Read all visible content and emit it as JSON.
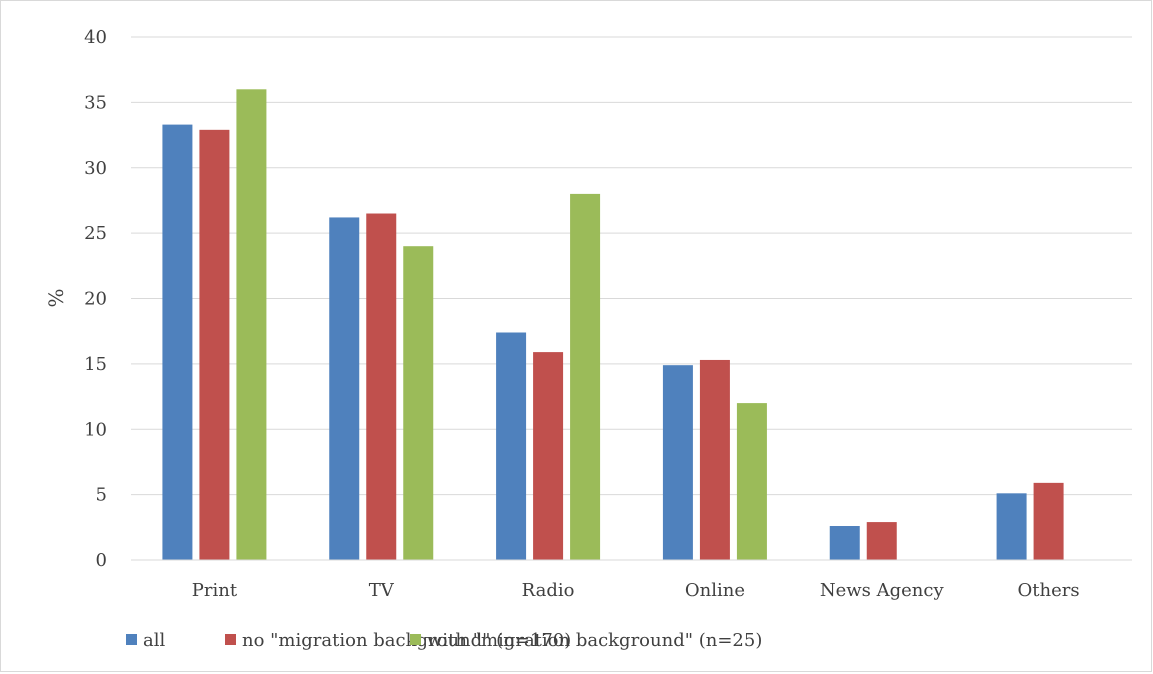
{
  "chart_data": {
    "type": "bar",
    "categories": [
      "Print",
      "TV",
      "Radio",
      "Online",
      "News Agency",
      "Others"
    ],
    "series": [
      {
        "name": "all",
        "color": "#4f81bd",
        "values": [
          33.3,
          26.2,
          17.4,
          14.9,
          2.6,
          5.1
        ]
      },
      {
        "name": "no \"migration background\" (n=170)",
        "color": "#c0504d",
        "values": [
          32.9,
          26.5,
          15.9,
          15.3,
          2.9,
          5.9
        ]
      },
      {
        "name": "with \"migration background\" (n=25)",
        "color": "#9bbb59",
        "values": [
          36,
          24,
          28,
          12,
          0,
          0
        ]
      }
    ],
    "ylabel": "%",
    "ylim": [
      0,
      40
    ],
    "yticks": [
      "0",
      "5",
      "10",
      "15",
      "20",
      "25",
      "30",
      "35",
      "40"
    ],
    "grid": true,
    "legend_position": "bottom"
  }
}
